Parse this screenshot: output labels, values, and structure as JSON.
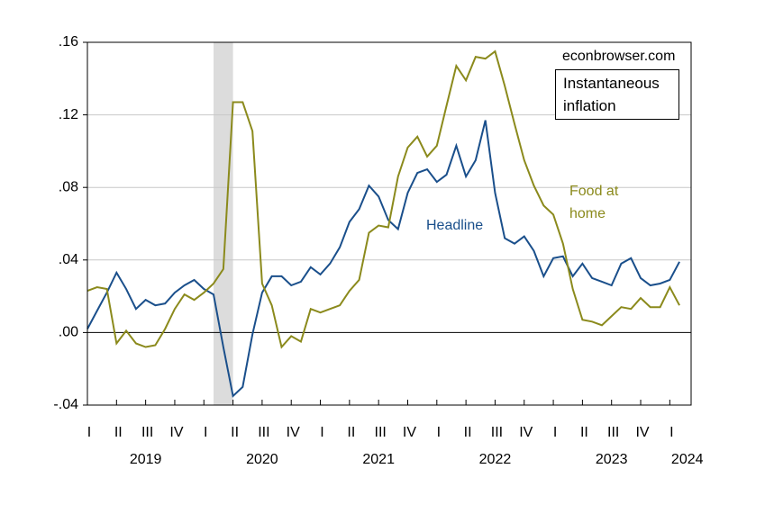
{
  "chart_data": {
    "type": "line",
    "annotations": {
      "source": "econbrowser.com",
      "box": "Instantaneous inflation"
    },
    "x": [
      2019,
      2019.083,
      2019.167,
      2019.25,
      2019.333,
      2019.417,
      2019.5,
      2019.583,
      2019.667,
      2019.75,
      2019.833,
      2019.917,
      2020,
      2020.083,
      2020.167,
      2020.25,
      2020.333,
      2020.417,
      2020.5,
      2020.583,
      2020.667,
      2020.75,
      2020.833,
      2020.917,
      2021,
      2021.083,
      2021.167,
      2021.25,
      2021.333,
      2021.417,
      2021.5,
      2021.583,
      2021.667,
      2021.75,
      2021.833,
      2021.917,
      2022,
      2022.083,
      2022.167,
      2022.25,
      2022.333,
      2022.417,
      2022.5,
      2022.583,
      2022.667,
      2022.75,
      2022.833,
      2022.917,
      2023,
      2023.083,
      2023.167,
      2023.25,
      2023.333,
      2023.417,
      2023.5,
      2023.583,
      2023.667,
      2023.75,
      2023.833,
      2023.917,
      2024,
      2024.083
    ],
    "series": [
      {
        "name": "Headline",
        "color": "#1a4f8b",
        "values": [
          0.002,
          0.012,
          0.022,
          0.033,
          0.024,
          0.013,
          0.018,
          0.015,
          0.016,
          0.022,
          0.026,
          0.029,
          0.024,
          0.021,
          -0.008,
          -0.035,
          -0.03,
          -0.001,
          0.022,
          0.031,
          0.031,
          0.026,
          0.028,
          0.036,
          0.032,
          0.038,
          0.047,
          0.061,
          0.068,
          0.081,
          0.075,
          0.062,
          0.057,
          0.077,
          0.088,
          0.09,
          0.083,
          0.087,
          0.103,
          0.086,
          0.095,
          0.117,
          0.077,
          0.052,
          0.049,
          0.053,
          0.045,
          0.031,
          0.041,
          0.042,
          0.031,
          0.038,
          0.03,
          0.028,
          0.026,
          0.038,
          0.041,
          0.03,
          0.026,
          0.027,
          0.029,
          0.039
        ]
      },
      {
        "name": "Food at home",
        "color": "#8b8a1c",
        "values": [
          0.023,
          0.025,
          0.024,
          -0.006,
          0.001,
          -0.006,
          -0.008,
          -0.007,
          0.002,
          0.013,
          0.021,
          0.018,
          0.022,
          0.027,
          0.035,
          0.127,
          0.127,
          0.111,
          0.027,
          0.015,
          -0.008,
          -0.002,
          -0.005,
          0.013,
          0.011,
          0.013,
          0.015,
          0.023,
          0.029,
          0.055,
          0.059,
          0.058,
          0.086,
          0.102,
          0.108,
          0.097,
          0.103,
          0.125,
          0.147,
          0.139,
          0.152,
          0.151,
          0.155,
          0.136,
          0.115,
          0.095,
          0.081,
          0.07,
          0.065,
          0.049,
          0.024,
          0.007,
          0.006,
          0.004,
          0.009,
          0.014,
          0.013,
          0.019,
          0.014,
          0.014,
          0.025,
          0.015
        ]
      }
    ],
    "shade": [
      2020.083,
      2020.25
    ],
    "xlim": [
      2019,
      2024.183
    ],
    "xticks": [
      {
        "value": 2019,
        "label": "I"
      },
      {
        "value": 2019.25,
        "label": "II"
      },
      {
        "value": 2019.5,
        "label": "III"
      },
      {
        "value": 2019.75,
        "label": "IV"
      },
      {
        "value": 2020,
        "label": "I"
      },
      {
        "value": 2020.25,
        "label": "II"
      },
      {
        "value": 2020.5,
        "label": "III"
      },
      {
        "value": 2020.75,
        "label": "IV"
      },
      {
        "value": 2021,
        "label": "I"
      },
      {
        "value": 2021.25,
        "label": "II"
      },
      {
        "value": 2021.5,
        "label": "III"
      },
      {
        "value": 2021.75,
        "label": "IV"
      },
      {
        "value": 2022,
        "label": "I"
      },
      {
        "value": 2022.25,
        "label": "II"
      },
      {
        "value": 2022.5,
        "label": "III"
      },
      {
        "value": 2022.75,
        "label": "IV"
      },
      {
        "value": 2023,
        "label": "I"
      },
      {
        "value": 2023.25,
        "label": "II"
      },
      {
        "value": 2023.5,
        "label": "III"
      },
      {
        "value": 2023.75,
        "label": "IV"
      },
      {
        "value": 2024,
        "label": "I"
      }
    ],
    "year_labels": [
      {
        "value": 2019.5,
        "label": "2019"
      },
      {
        "value": 2020.5,
        "label": "2020"
      },
      {
        "value": 2021.5,
        "label": "2021"
      },
      {
        "value": 2022.5,
        "label": "2022"
      },
      {
        "value": 2023.5,
        "label": "2023"
      },
      {
        "value": 2024.15,
        "label": "2024"
      }
    ],
    "ylim": [
      -0.04,
      0.16
    ],
    "yticks": [
      {
        "value": -0.04,
        "label": "-.04"
      },
      {
        "value": 0,
        "label": ".00"
      },
      {
        "value": 0.04,
        "label": ".04"
      },
      {
        "value": 0.08,
        "label": ".08"
      },
      {
        "value": 0.12,
        "label": ".12"
      },
      {
        "value": 0.16,
        "label": ".16"
      }
    ],
    "grid": true
  }
}
